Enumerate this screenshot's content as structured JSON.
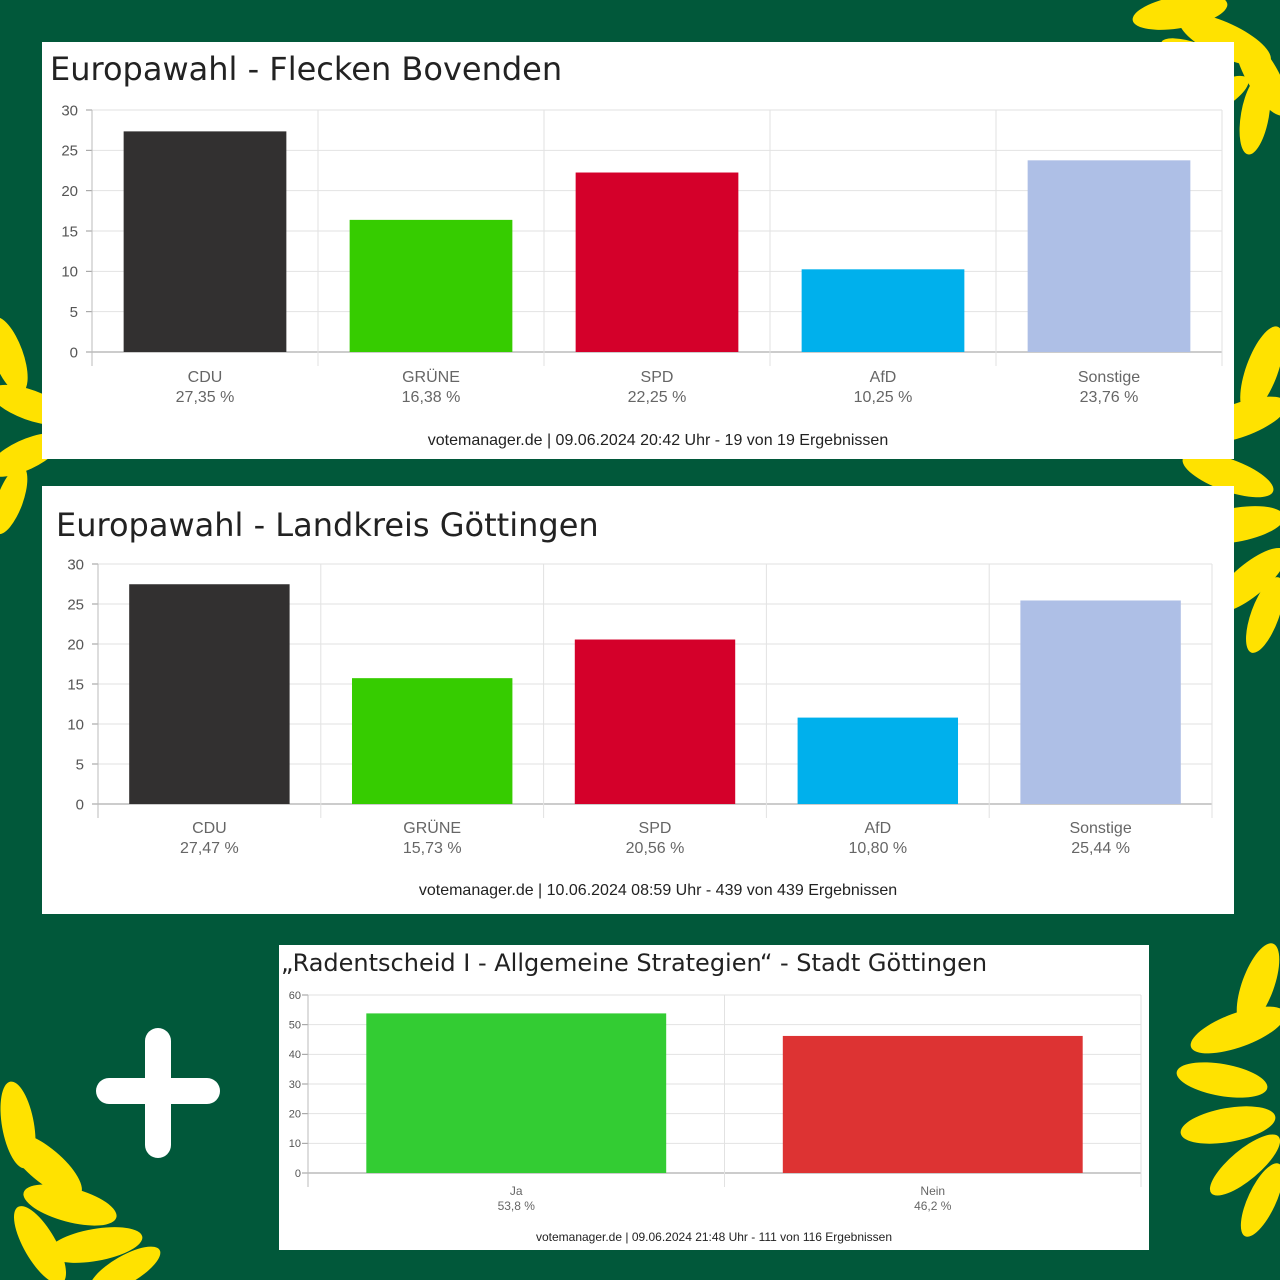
{
  "colors": {
    "background": "#01583a",
    "sunflower": "#ffe200",
    "plus": "#ffffff"
  },
  "chart_data": [
    {
      "type": "bar",
      "title": "Europawahl - Flecken Bovenden",
      "categories": [
        "CDU",
        "GRÜNE",
        "SPD",
        "AfD",
        "Sonstige"
      ],
      "value_labels": [
        "27,35 %",
        "16,38 %",
        "22,25 %",
        "10,25 %",
        "23,76 %"
      ],
      "values": [
        27.35,
        16.38,
        22.25,
        10.25,
        23.76
      ],
      "colors": [
        "#323030",
        "#36cc00",
        "#d4002a",
        "#00b0ec",
        "#aebfe6"
      ],
      "ylim": [
        0,
        30
      ],
      "yticks": [
        "0",
        "5",
        "10",
        "15",
        "20",
        "25",
        "30"
      ],
      "grid": true,
      "xlabel": "",
      "ylabel": "",
      "footer": "votemanager.de | 09.06.2024 20:42 Uhr - 19 von 19 Ergebnissen"
    },
    {
      "type": "bar",
      "title": "Europawahl - Landkreis Göttingen",
      "categories": [
        "CDU",
        "GRÜNE",
        "SPD",
        "AfD",
        "Sonstige"
      ],
      "value_labels": [
        "27,47 %",
        "15,73 %",
        "20,56 %",
        "10,80 %",
        "25,44 %"
      ],
      "values": [
        27.47,
        15.73,
        20.56,
        10.8,
        25.44
      ],
      "colors": [
        "#323030",
        "#36cc00",
        "#d4002a",
        "#00b0ec",
        "#aebfe6"
      ],
      "ylim": [
        0,
        30
      ],
      "yticks": [
        "0",
        "5",
        "10",
        "15",
        "20",
        "25",
        "30"
      ],
      "grid": true,
      "xlabel": "",
      "ylabel": "",
      "footer": "votemanager.de | 10.06.2024 08:59 Uhr - 439 von 439 Ergebnissen"
    },
    {
      "type": "bar",
      "title": "„Radentscheid I - Allgemeine Strategien“ - Stadt Göttingen",
      "categories": [
        "Ja",
        "Nein"
      ],
      "value_labels": [
        "53,8 %",
        "46,2 %"
      ],
      "values": [
        53.8,
        46.2
      ],
      "colors": [
        "#33cc33",
        "#dd3333"
      ],
      "ylim": [
        0,
        60
      ],
      "yticks": [
        "0",
        "10",
        "20",
        "30",
        "40",
        "50",
        "60"
      ],
      "grid": true,
      "xlabel": "",
      "ylabel": "",
      "footer": "votemanager.de | 09.06.2024 21:48 Uhr - 111 von 116 Ergebnissen"
    }
  ]
}
